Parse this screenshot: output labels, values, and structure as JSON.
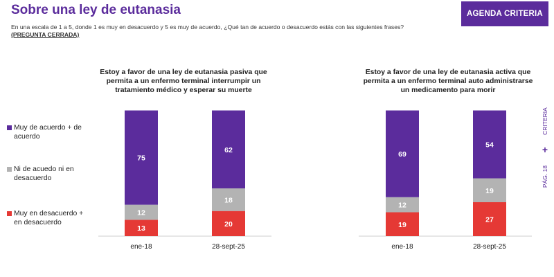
{
  "header": {
    "title": "Sobre una ley de eutanasia",
    "brand_button": "AGENDA CRITERIA",
    "question": "En una escala de 1 a 5, donde 1 es muy en desacuerdo y 5 es muy de acuerdo, ¿Qué tan de acuerdo o desacuerdo estás con las siguientes frases?",
    "question_note": "(PREGUNTA CERRADA)"
  },
  "legend": [
    {
      "label": "Muy de acuerdo + de acuerdo",
      "color": "#5b2c9c"
    },
    {
      "label": "Ni de acuedo ni en desacuerdo",
      "color": "#b3b3b3"
    },
    {
      "label": "Muy en desacuerdo + en desacuerdo",
      "color": "#e53935"
    }
  ],
  "side": {
    "brand": "CRITERIA",
    "plus": "+",
    "page": "PÁG. 18"
  },
  "chart_data": [
    {
      "type": "bar",
      "stacked": true,
      "title": "Estoy a favor de una ley de eutanasia pasiva que permita a un enfermo terminal interrumpir un tratamiento médico y esperar su muerte",
      "categories": [
        "ene-18",
        "28-sept-25"
      ],
      "series": [
        {
          "name": "Muy en desacuerdo + en desacuerdo",
          "values": [
            13,
            20
          ],
          "color": "#e53935"
        },
        {
          "name": "Ni de acuedo ni en desacuerdo",
          "values": [
            12,
            18
          ],
          "color": "#b3b3b3"
        },
        {
          "name": "Muy de acuerdo + de acuerdo",
          "values": [
            75,
            62
          ],
          "color": "#5b2c9c"
        }
      ]
    },
    {
      "type": "bar",
      "stacked": true,
      "title": "Estoy a favor de una ley de eutanasia activa que permita a un enfermo terminal auto administrarse un medicamento para morir",
      "categories": [
        "ene-18",
        "28-sept-25"
      ],
      "series": [
        {
          "name": "Muy en desacuerdo + en desacuerdo",
          "values": [
            19,
            27
          ],
          "color": "#e53935"
        },
        {
          "name": "Ni de acuedo ni en desacuerdo",
          "values": [
            12,
            19
          ],
          "color": "#b3b3b3"
        },
        {
          "name": "Muy de acuerdo + de acuerdo",
          "values": [
            69,
            54
          ],
          "color": "#5b2c9c"
        }
      ]
    }
  ]
}
